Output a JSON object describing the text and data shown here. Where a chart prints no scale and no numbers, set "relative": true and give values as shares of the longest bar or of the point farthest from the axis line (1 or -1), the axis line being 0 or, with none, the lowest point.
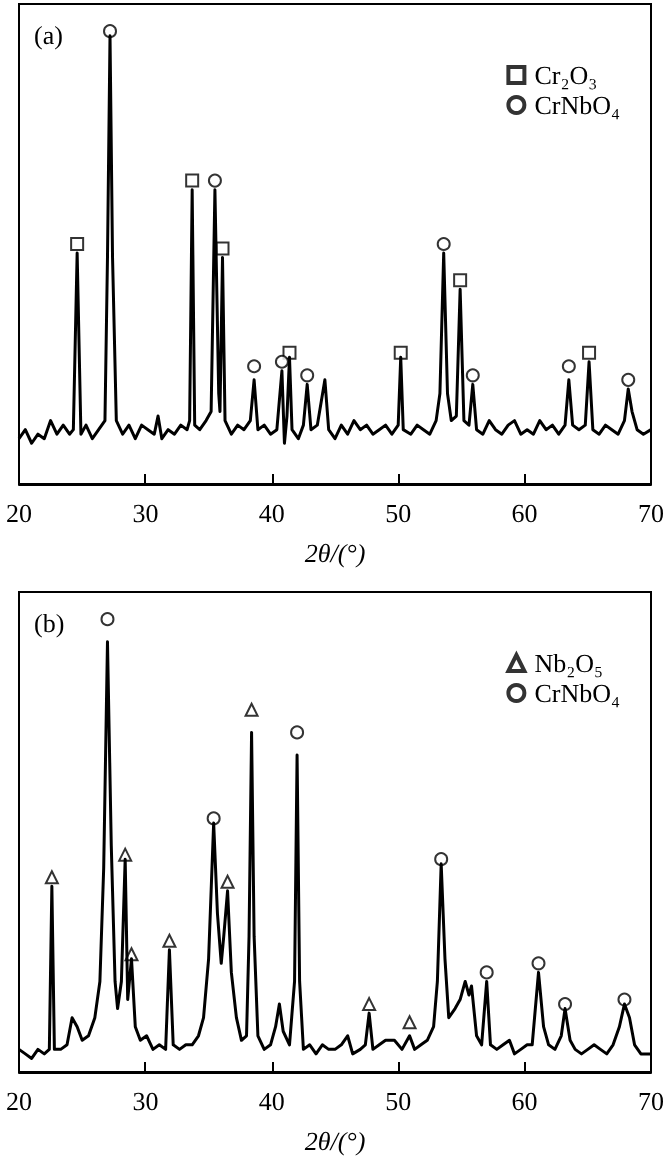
{
  "chart_data": [
    {
      "type": "line",
      "title": "(a)",
      "xlabel": "2θ/(°)",
      "xlim": [
        20,
        70
      ],
      "xticks": [
        20,
        30,
        40,
        50,
        60,
        70
      ],
      "relative": true,
      "legend": "top right",
      "series": [
        {
          "color": "#000000",
          "marker": "none",
          "x": [
            20,
            20.5,
            21,
            21.5,
            22,
            22.5,
            23,
            23.5,
            24,
            24.3,
            24.6,
            24.9,
            25.3,
            25.8,
            26.3,
            26.8,
            27.0,
            27.2,
            27.4,
            27.7,
            28.2,
            28.7,
            29.2,
            29.7,
            30.2,
            30.7,
            31.0,
            31.3,
            31.8,
            32.3,
            32.8,
            33.3,
            33.5,
            33.7,
            33.9,
            34.3,
            34.8,
            35.2,
            35.5,
            35.8,
            35.9,
            36.1,
            36.3,
            36.8,
            37.3,
            37.8,
            38.3,
            38.6,
            38.9,
            39.4,
            39.9,
            40.4,
            40.8,
            41.0,
            41.2,
            41.4,
            41.6,
            42.1,
            42.5,
            42.8,
            43.1,
            43.6,
            44.2,
            44.5,
            45,
            45.5,
            46,
            46.5,
            47,
            47.5,
            48,
            48.5,
            49,
            49.5,
            50,
            50.2,
            50.4,
            51,
            51.5,
            52,
            52.5,
            53,
            53.3,
            53.6,
            53.9,
            54.2,
            54.6,
            54.9,
            55.2,
            55.6,
            55.9,
            56.2,
            56.7,
            57.2,
            57.7,
            58.2,
            58.7,
            59.2,
            59.7,
            60.2,
            60.7,
            61.2,
            61.7,
            62.2,
            62.7,
            63.2,
            63.5,
            63.8,
            64.3,
            64.8,
            65.1,
            65.4,
            65.9,
            66.4,
            66.9,
            67.4,
            67.9,
            68.2,
            68.5,
            68.9,
            69.4,
            70
          ],
          "values": [
            0.1,
            0.12,
            0.09,
            0.11,
            0.1,
            0.14,
            0.11,
            0.13,
            0.11,
            0.12,
            0.51,
            0.11,
            0.13,
            0.1,
            0.12,
            0.14,
            0.5,
            0.99,
            0.5,
            0.14,
            0.11,
            0.13,
            0.1,
            0.13,
            0.12,
            0.11,
            0.15,
            0.1,
            0.12,
            0.11,
            0.13,
            0.12,
            0.14,
            0.65,
            0.13,
            0.12,
            0.14,
            0.16,
            0.65,
            0.2,
            0.16,
            0.5,
            0.14,
            0.11,
            0.13,
            0.12,
            0.14,
            0.23,
            0.12,
            0.13,
            0.11,
            0.12,
            0.25,
            0.09,
            0.15,
            0.28,
            0.12,
            0.1,
            0.13,
            0.22,
            0.12,
            0.13,
            0.23,
            0.12,
            0.1,
            0.13,
            0.11,
            0.14,
            0.12,
            0.13,
            0.11,
            0.12,
            0.13,
            0.11,
            0.13,
            0.28,
            0.12,
            0.11,
            0.13,
            0.12,
            0.11,
            0.14,
            0.2,
            0.51,
            0.2,
            0.14,
            0.15,
            0.43,
            0.14,
            0.13,
            0.22,
            0.12,
            0.11,
            0.14,
            0.12,
            0.11,
            0.13,
            0.14,
            0.11,
            0.12,
            0.11,
            0.14,
            0.12,
            0.13,
            0.11,
            0.13,
            0.23,
            0.13,
            0.12,
            0.13,
            0.27,
            0.12,
            0.11,
            0.13,
            0.12,
            0.11,
            0.14,
            0.21,
            0.16,
            0.12,
            0.11,
            0.12
          ]
        },
        {
          "type": "scatter",
          "name": "Cr₂O₃",
          "color": "#000000",
          "marker": "square",
          "x": [
            24.6,
            33.7,
            36.1,
            41.4,
            50.2,
            54.9,
            65.1
          ],
          "values": [
            0.53,
            0.67,
            0.52,
            0.29,
            0.29,
            0.45,
            0.29
          ]
        },
        {
          "type": "scatter",
          "name": "CrNbO₄",
          "color": "#000000",
          "marker": "circle",
          "x": [
            27.2,
            35.5,
            38.6,
            40.8,
            42.8,
            53.6,
            55.9,
            63.5,
            68.2
          ],
          "values": [
            1.0,
            0.67,
            0.26,
            0.27,
            0.24,
            0.53,
            0.24,
            0.26,
            0.23
          ]
        }
      ]
    },
    {
      "type": "line",
      "title": "(b)",
      "xlabel": "2θ/(°)",
      "xlim": [
        20,
        70
      ],
      "xticks": [
        20,
        30,
        40,
        50,
        60,
        70
      ],
      "relative": true,
      "legend": "top right",
      "series": [
        {
          "color": "#000000",
          "marker": "none",
          "x": [
            20,
            20.5,
            21,
            21.5,
            22,
            22.4,
            22.6,
            22.8,
            23.3,
            23.8,
            24.2,
            24.6,
            25,
            25.5,
            26,
            26.4,
            26.7,
            27.0,
            27.3,
            27.6,
            27.8,
            28.1,
            28.4,
            28.6,
            28.9,
            29.2,
            29.6,
            30.1,
            30.6,
            31.1,
            31.6,
            31.9,
            32.2,
            32.7,
            33.2,
            33.7,
            34.2,
            34.6,
            35.0,
            35.4,
            35.7,
            36.0,
            36.2,
            36.5,
            36.8,
            37.2,
            37.6,
            38.0,
            38.2,
            38.4,
            38.6,
            38.9,
            39.4,
            39.9,
            40.3,
            40.6,
            40.9,
            41.4,
            41.8,
            42.0,
            42.2,
            42.5,
            43,
            43.5,
            44,
            44.5,
            45,
            45.5,
            46.0,
            46.4,
            47,
            47.4,
            47.7,
            48.0,
            48.5,
            49,
            49.7,
            50.3,
            50.9,
            51.3,
            51.8,
            52.3,
            52.8,
            53.1,
            53.4,
            53.7,
            54.0,
            54.5,
            54.9,
            55.3,
            55.6,
            55.8,
            56.2,
            56.6,
            57.0,
            57.3,
            57.8,
            58.3,
            58.8,
            59.2,
            59.7,
            60.2,
            60.6,
            61.1,
            61.5,
            61.9,
            62.4,
            62.9,
            63.2,
            63.6,
            64,
            64.5,
            65,
            65.5,
            66,
            66.5,
            67,
            67.5,
            67.9,
            68.3,
            68.7,
            69.2,
            70
          ],
          "values": [
            0.05,
            0.04,
            0.03,
            0.05,
            0.04,
            0.05,
            0.41,
            0.05,
            0.05,
            0.06,
            0.12,
            0.1,
            0.07,
            0.08,
            0.12,
            0.2,
            0.45,
            0.95,
            0.5,
            0.2,
            0.14,
            0.2,
            0.47,
            0.16,
            0.25,
            0.1,
            0.07,
            0.08,
            0.05,
            0.06,
            0.05,
            0.27,
            0.06,
            0.05,
            0.06,
            0.06,
            0.08,
            0.12,
            0.25,
            0.55,
            0.35,
            0.24,
            0.3,
            0.4,
            0.22,
            0.12,
            0.07,
            0.08,
            0.3,
            0.75,
            0.3,
            0.08,
            0.05,
            0.06,
            0.1,
            0.15,
            0.09,
            0.06,
            0.2,
            0.7,
            0.2,
            0.05,
            0.06,
            0.04,
            0.06,
            0.05,
            0.05,
            0.06,
            0.08,
            0.04,
            0.05,
            0.06,
            0.13,
            0.05,
            0.06,
            0.07,
            0.07,
            0.05,
            0.08,
            0.05,
            0.06,
            0.07,
            0.1,
            0.2,
            0.46,
            0.25,
            0.12,
            0.14,
            0.16,
            0.2,
            0.17,
            0.19,
            0.08,
            0.06,
            0.2,
            0.06,
            0.05,
            0.06,
            0.07,
            0.04,
            0.05,
            0.06,
            0.06,
            0.22,
            0.1,
            0.06,
            0.05,
            0.08,
            0.14,
            0.07,
            0.05,
            0.04,
            0.05,
            0.06,
            0.05,
            0.04,
            0.06,
            0.1,
            0.15,
            0.12,
            0.06,
            0.04,
            0.04
          ]
        },
        {
          "type": "scatter",
          "name": "Nb₂O₅",
          "color": "#000000",
          "marker": "triangle",
          "x": [
            22.6,
            28.4,
            28.9,
            31.9,
            36.5,
            38.4,
            47.7,
            50.9
          ],
          "values": [
            0.43,
            0.48,
            0.26,
            0.29,
            0.42,
            0.8,
            0.15,
            0.11
          ]
        },
        {
          "type": "scatter",
          "name": "CrNbO₄",
          "color": "#000000",
          "marker": "circle",
          "x": [
            27.0,
            35.4,
            42.0,
            53.4,
            57.0,
            61.1,
            63.2,
            67.9
          ],
          "values": [
            1.0,
            0.56,
            0.75,
            0.47,
            0.22,
            0.24,
            0.15,
            0.16
          ]
        }
      ]
    }
  ]
}
